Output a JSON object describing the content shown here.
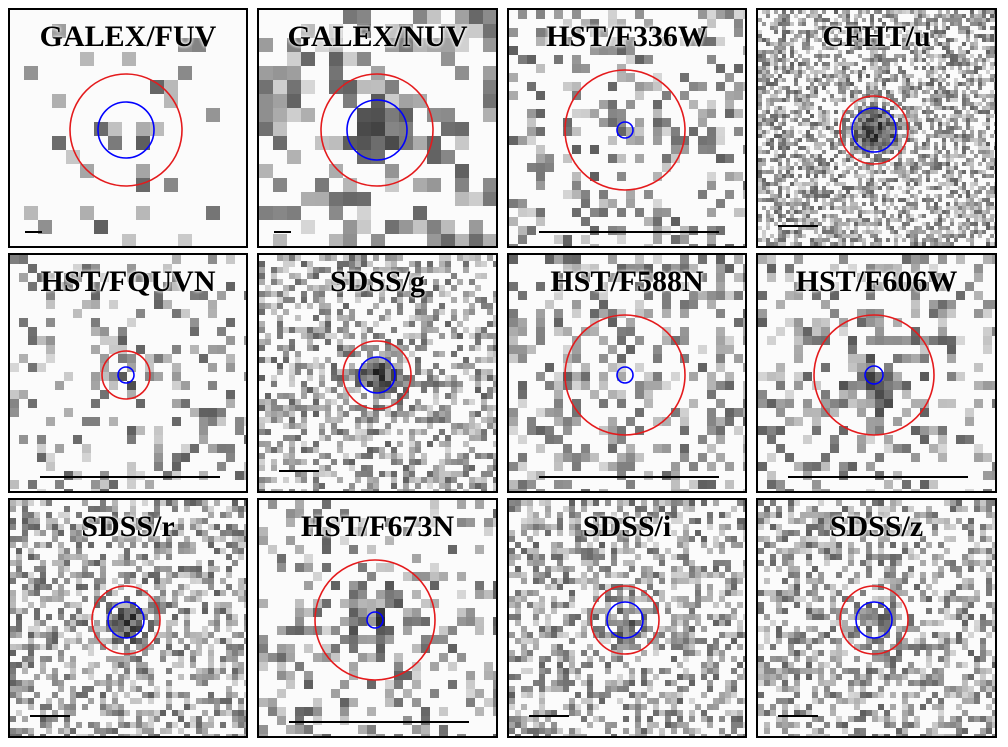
{
  "figure": {
    "panels": [
      {
        "label": "GALEX/FUV"
      },
      {
        "label": "GALEX/NUV"
      },
      {
        "label": "HST/F336W"
      },
      {
        "label": "CFHT/u"
      },
      {
        "label": "HST/FQUVN"
      },
      {
        "label": "SDSS/g"
      },
      {
        "label": "HST/F588N"
      },
      {
        "label": "HST/F606W"
      },
      {
        "label": "SDSS/r"
      },
      {
        "label": "HST/F673N"
      },
      {
        "label": "SDSS/i"
      },
      {
        "label": "SDSS/z"
      }
    ],
    "colors": {
      "outer_aperture": "#e41a1c",
      "inner_aperture": "#0000ff",
      "scale_bar": "#000000",
      "frame": "#000000"
    }
  }
}
